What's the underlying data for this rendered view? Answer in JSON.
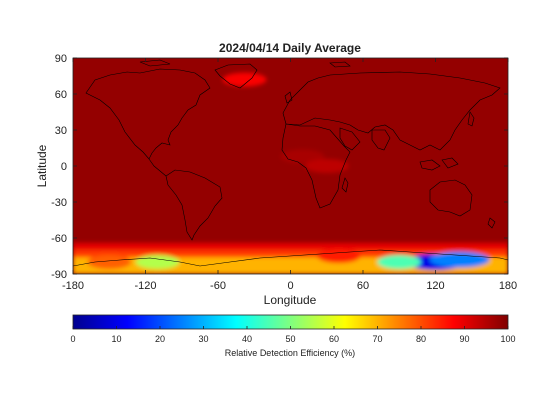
{
  "chart_data": {
    "type": "heatmap",
    "title": "2024/04/14 Daily Average",
    "xlabel": "Longitude",
    "ylabel": "Latitude",
    "xlim": [
      -180,
      180
    ],
    "ylim": [
      -90,
      90
    ],
    "xticks": [
      -180,
      -120,
      -60,
      0,
      60,
      120,
      180
    ],
    "yticks": [
      90,
      60,
      30,
      0,
      -30,
      -60,
      -90
    ],
    "grid": false,
    "colorbar": {
      "label": "Relative Detection Efficiency (%)",
      "colormap": "jet",
      "range": [
        0,
        100
      ],
      "ticks": [
        0,
        10,
        20,
        30,
        40,
        50,
        60,
        70,
        80,
        90,
        100
      ],
      "orientation": "horizontal",
      "placement": "bottom"
    },
    "background_value": 98,
    "features": [
      {
        "lon": -38,
        "lat": 72,
        "value": 88,
        "feature": "Greenland"
      },
      {
        "lon": 120,
        "lat": -80,
        "value": 10,
        "feature": "East Antarctica minimum"
      },
      {
        "lon": 140,
        "lat": -78,
        "value": 25
      },
      {
        "lon": 90,
        "lat": -80,
        "value": 45
      },
      {
        "lon": -110,
        "lat": -80,
        "value": 55
      },
      {
        "lon": -150,
        "lat": -80,
        "value": 78
      },
      {
        "lon": 40,
        "lat": -75,
        "value": 85
      },
      {
        "lon": 10,
        "lat": 8,
        "value": 96
      },
      {
        "lon": 30,
        "lat": 0,
        "value": 94
      }
    ],
    "overlay": "coastlines"
  },
  "colors": {
    "axis": "#222222",
    "coastline": "#000000"
  }
}
